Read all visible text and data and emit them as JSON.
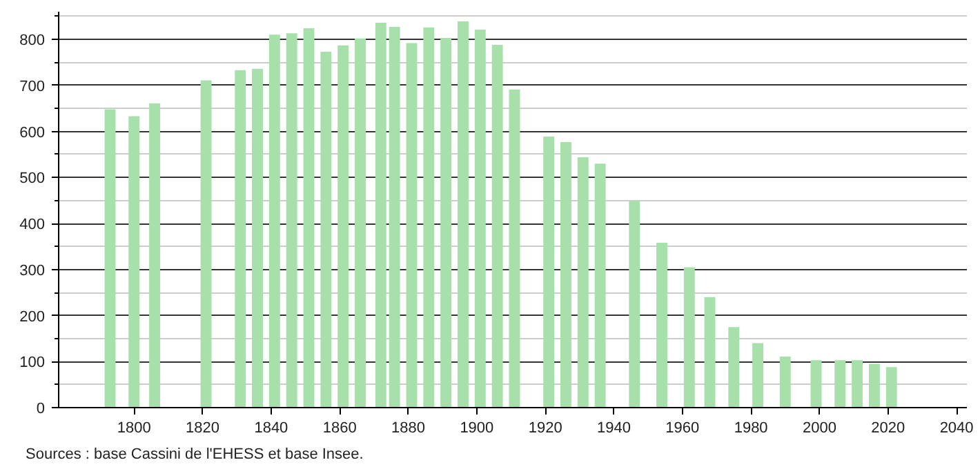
{
  "chart_data": {
    "type": "bar",
    "x": [
      1793,
      1800,
      1806,
      1821,
      1831,
      1836,
      1841,
      1846,
      1851,
      1856,
      1861,
      1866,
      1872,
      1876,
      1881,
      1886,
      1891,
      1896,
      1901,
      1906,
      1911,
      1921,
      1926,
      1931,
      1936,
      1946,
      1954,
      1962,
      1968,
      1975,
      1982,
      1990,
      1999,
      2006,
      2011,
      2016,
      2021
    ],
    "values": [
      648,
      633,
      661,
      711,
      733,
      736,
      810,
      813,
      824,
      773,
      787,
      802,
      836,
      827,
      792,
      826,
      803,
      839,
      821,
      788,
      691,
      589,
      577,
      544,
      530,
      449,
      358,
      305,
      240,
      175,
      140,
      111,
      103,
      103,
      103,
      95,
      88
    ],
    "color": "#a8e0ab",
    "xlim": [
      1778,
      2043
    ],
    "xticks": [
      1800,
      1820,
      1840,
      1860,
      1880,
      1900,
      1920,
      1940,
      1960,
      1980,
      2000,
      2020,
      2040
    ],
    "ylim": [
      0,
      860
    ],
    "yticks": [
      0,
      {
        "value": 50,
        "label": null
      },
      100,
      {
        "value": 150,
        "label": null
      },
      200,
      {
        "value": 250,
        "label": null
      },
      300,
      {
        "value": 350,
        "label": null
      },
      400,
      {
        "value": 450,
        "label": null
      },
      500,
      {
        "value": 550,
        "label": null
      },
      600,
      {
        "value": 650,
        "label": null
      },
      700,
      {
        "value": 750,
        "label": null
      },
      800,
      {
        "value": 850,
        "label": null
      }
    ],
    "grid": "y",
    "annotations": [
      "Sources : base Cassini de l'EHESS et base Insee."
    ]
  }
}
